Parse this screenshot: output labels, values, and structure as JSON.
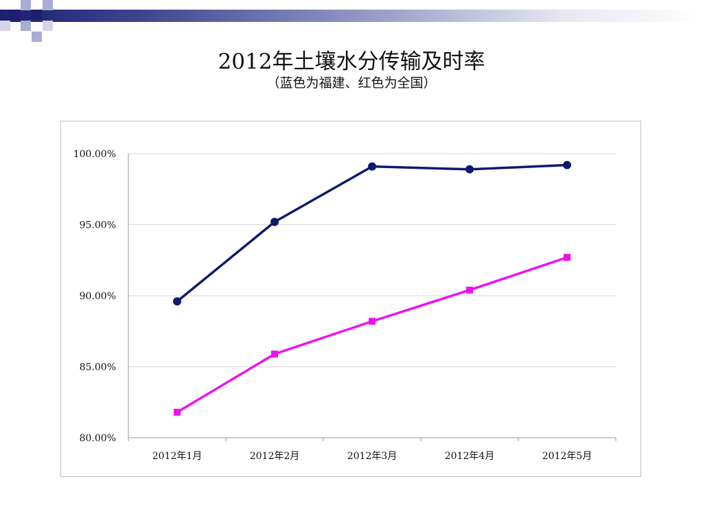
{
  "title": "2012年土壤水分传输及时率",
  "subtitle": "（蓝色为福建、红色为全国）",
  "colors": {
    "fujian": "#0d1a6e",
    "national": "#ee11ee",
    "grid": "#d4d4d4",
    "axis": "#9a9a9a"
  },
  "chart_data": {
    "type": "line",
    "categories": [
      "2012年1月",
      "2012年2月",
      "2012年3月",
      "2012年4月",
      "2012年5月"
    ],
    "series": [
      {
        "color": "#0d1a6e",
        "marker": "circle",
        "values": [
          89.6,
          95.2,
          99.1,
          98.9,
          99.2
        ]
      },
      {
        "color": "#ee11ee",
        "marker": "square",
        "values": [
          81.8,
          85.9,
          88.2,
          90.4,
          92.7
        ]
      }
    ],
    "ylim": [
      80,
      100
    ],
    "yticks": [
      80,
      85,
      90,
      95,
      100
    ],
    "ytick_labels": [
      "80.00%",
      "85.00%",
      "90.00%",
      "95.00%",
      "100.00%"
    ],
    "grid": true,
    "legend": "none"
  }
}
